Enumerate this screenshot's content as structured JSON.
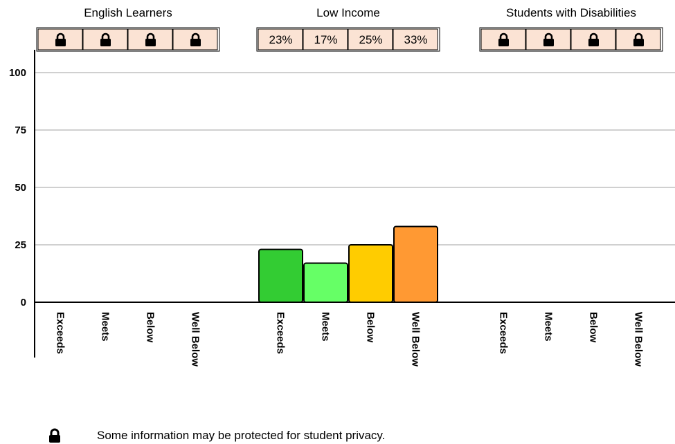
{
  "chart_data": {
    "type": "bar",
    "yticks": [
      0,
      25,
      50,
      75,
      100
    ],
    "ylim": [
      0,
      100
    ],
    "grid": true,
    "groups": [
      {
        "name": "English Learners",
        "categories": [
          "Exceeds",
          "Meets",
          "Below",
          "Well Below"
        ],
        "values": [
          null,
          null,
          null,
          null
        ],
        "table": [
          "lock",
          "lock",
          "lock",
          "lock"
        ]
      },
      {
        "name": "Low Income",
        "categories": [
          "Exceeds",
          "Meets",
          "Below",
          "Well Below"
        ],
        "values": [
          23,
          17,
          25,
          33
        ],
        "table": [
          "23%",
          "17%",
          "25%",
          "33%"
        ]
      },
      {
        "name": "Students with Disabilities",
        "categories": [
          "Exceeds",
          "Meets",
          "Below",
          "Well Below"
        ],
        "values": [
          null,
          null,
          null,
          null
        ],
        "table": [
          "lock",
          "lock",
          "lock",
          "lock"
        ]
      }
    ],
    "colors": {
      "Exceeds": "#33cc33",
      "Meets": "#66ff66",
      "Below": "#ffcc00",
      "Well Below": "#ff9933"
    },
    "table_fill": "#fbe3d4"
  },
  "footnote": {
    "icon": "lock-icon",
    "text": "Some information may be protected for student privacy."
  }
}
